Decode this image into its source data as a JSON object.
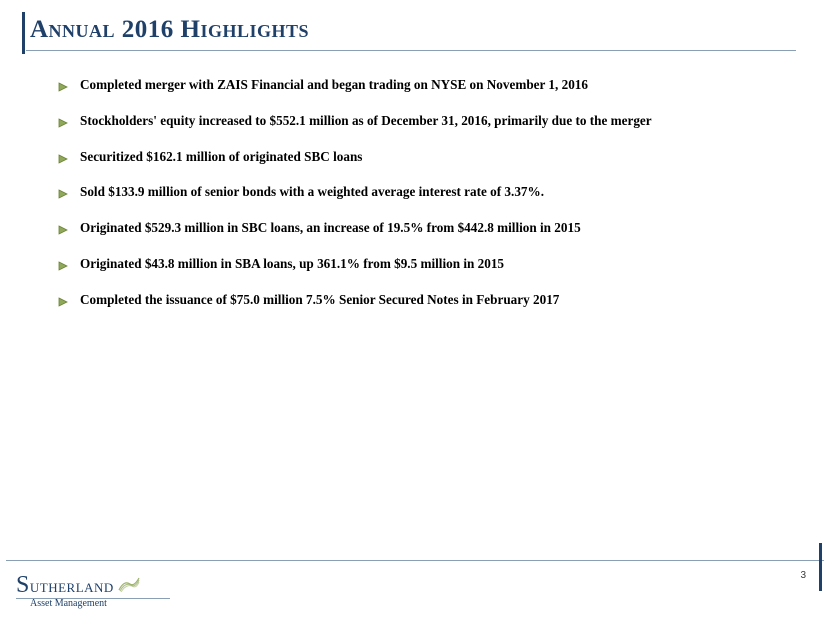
{
  "colors": {
    "heading": "#1f4069",
    "rule": "#8A9FB5",
    "accent": "#1f4069",
    "bullet_fill": "#8FA85A",
    "bullet_stroke": "#6A8235",
    "text": "#000000",
    "logo_swoosh": "#9CB26A",
    "background": "#ffffff"
  },
  "title": "Annual 2016 Highlights",
  "bullets": [
    "Completed merger with ZAIS Financial and began trading on NYSE on November 1, 2016",
    "Stockholders' equity increased to $552.1 million as of December 31, 2016, primarily due to the merger",
    "Securitized $162.1 million of originated SBC loans",
    "Sold $133.9 million of senior bonds with a weighted average interest rate of 3.37%.",
    "Originated $529.3 million in SBC loans, an increase of 19.5% from $442.8 million in 2015",
    "Originated $43.8 million in SBA loans, up 361.1% from $9.5 million in 2015",
    "Completed the issuance of $75.0 million 7.5% Senior Secured Notes in February 2017"
  ],
  "logo": {
    "name_rest": "utherland",
    "name_first": "S",
    "subtitle": "Asset Management"
  },
  "page_number": "3"
}
